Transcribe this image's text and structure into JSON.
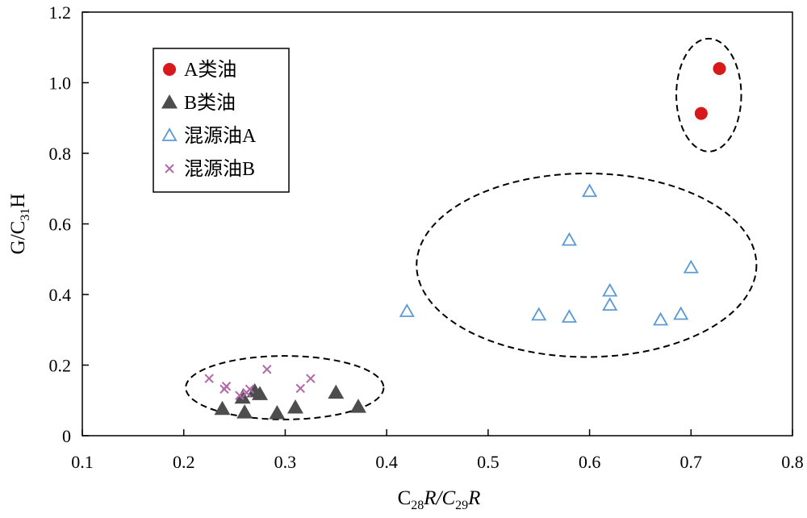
{
  "chart_data": {
    "type": "scatter",
    "xlim": [
      0.1,
      0.8
    ],
    "ylim": [
      0,
      1.2
    ],
    "x_ticks": [
      "0.1",
      "0.2",
      "0.3",
      "0.4",
      "0.5",
      "0.6",
      "0.7",
      "0.8"
    ],
    "y_ticks": [
      "0",
      "0.2",
      "0.4",
      "0.6",
      "0.8",
      "1.0",
      "1.2"
    ],
    "xlabel": {
      "base": "C",
      "sub1": "28",
      "mid": "R/C",
      "sub2": "29",
      "end": "R"
    },
    "ylabel": {
      "base": "G/C",
      "sub": "31",
      "end": "H"
    },
    "legend_position": "top-left",
    "grid": false,
    "series": [
      {
        "name": "A类油",
        "marker": "filled-circle",
        "color": "#d7191c",
        "points": [
          [
            0.728,
            1.04
          ],
          [
            0.71,
            0.913
          ]
        ]
      },
      {
        "name": "B类油",
        "marker": "filled-triangle",
        "color": "#4d4d4d",
        "points": [
          [
            0.238,
            0.076
          ],
          [
            0.258,
            0.108
          ],
          [
            0.26,
            0.066
          ],
          [
            0.27,
            0.126
          ],
          [
            0.275,
            0.118
          ],
          [
            0.292,
            0.064
          ],
          [
            0.31,
            0.08
          ],
          [
            0.35,
            0.122
          ],
          [
            0.372,
            0.082
          ]
        ]
      },
      {
        "name": "混源油A",
        "marker": "open-triangle",
        "color": "#5b9bd5",
        "points": [
          [
            0.42,
            0.352
          ],
          [
            0.55,
            0.342
          ],
          [
            0.58,
            0.336
          ],
          [
            0.58,
            0.554
          ],
          [
            0.6,
            0.692
          ],
          [
            0.62,
            0.41
          ],
          [
            0.62,
            0.37
          ],
          [
            0.67,
            0.328
          ],
          [
            0.69,
            0.344
          ],
          [
            0.7,
            0.476
          ]
        ]
      },
      {
        "name": "混源油B",
        "marker": "cross",
        "color": "#b06ba8",
        "points": [
          [
            0.225,
            0.162
          ],
          [
            0.24,
            0.132
          ],
          [
            0.242,
            0.14
          ],
          [
            0.255,
            0.114
          ],
          [
            0.262,
            0.122
          ],
          [
            0.265,
            0.132
          ],
          [
            0.282,
            0.188
          ],
          [
            0.315,
            0.134
          ],
          [
            0.325,
            0.162
          ]
        ]
      }
    ],
    "annotations": [
      {
        "shape": "dashed-ellipse",
        "center": [
          0.7175,
          0.965
        ],
        "rx": 0.032,
        "ry": 0.16,
        "angle_deg": 0
      },
      {
        "shape": "dashed-ellipse",
        "center": [
          0.2995,
          0.136
        ],
        "rx": 0.0975,
        "ry": 0.09,
        "angle_deg": 0
      },
      {
        "shape": "dashed-ellipse",
        "center": [
          0.597,
          0.483
        ],
        "rx": 0.1675,
        "ry": 0.26,
        "angle_deg": 0
      }
    ]
  }
}
